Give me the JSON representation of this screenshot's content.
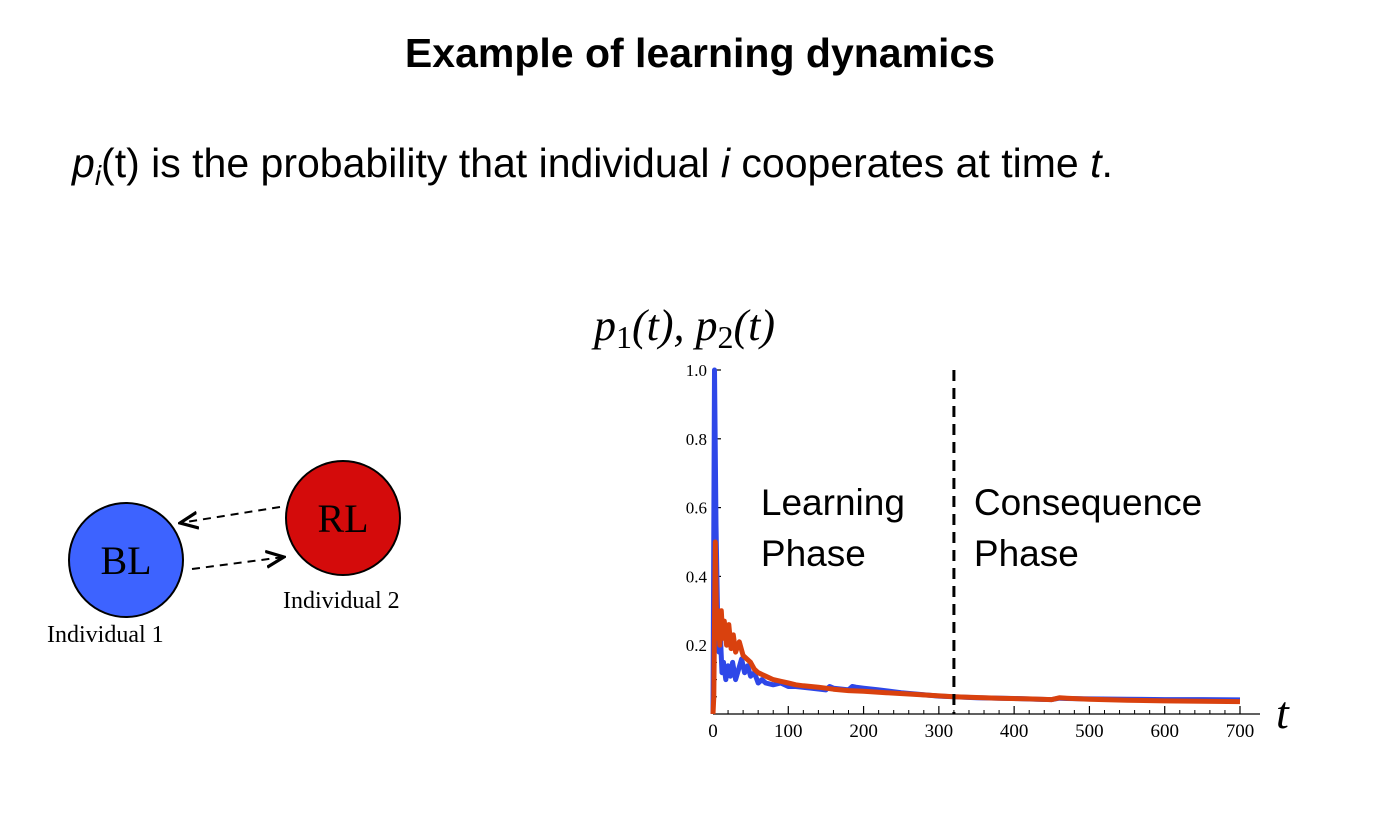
{
  "slide": {
    "title": "Example of learning dynamics",
    "sub_p": "p",
    "sub_i": "i",
    "sub_t": "(t)",
    "sub_text1": " is the probability that individual ",
    "sub_ivar": "i",
    "sub_text2": " cooperates at time ",
    "sub_tvar": "t",
    "sub_end": "."
  },
  "diagram": {
    "node1_label": "BL",
    "node2_label": "RL",
    "individual1": "Individual 1",
    "individual2": "Individual 2",
    "node1_color": "#3d63ff",
    "node2_color": "#d40b0b"
  },
  "chart_ylabel": {
    "p1": "p",
    "one": "1",
    "t1": "(t), ",
    "p2": "p",
    "two": "2",
    "t2": "(t)"
  },
  "chart_data": {
    "type": "line",
    "xlabel": "t",
    "xlim": [
      0,
      700
    ],
    "ylim": [
      0,
      1.0
    ],
    "x_ticks": [
      0,
      100,
      200,
      300,
      400,
      500,
      600,
      700
    ],
    "y_ticks": [
      0.2,
      0.4,
      0.6,
      0.8,
      1.0
    ],
    "y_tick_labels": [
      "0.2",
      "0.4",
      "0.6",
      "0.8",
      "1.0"
    ],
    "phase_boundary_x": 320,
    "annotations": [
      {
        "line1": "Learning",
        "line2": "Phase"
      },
      {
        "line1": "Consequence",
        "line2": "Phase"
      }
    ],
    "series": [
      {
        "color": "#2e47e8",
        "x": [
          0,
          2,
          4,
          6,
          8,
          10,
          12,
          14,
          17,
          20,
          23,
          26,
          30,
          34,
          38,
          42,
          46,
          50,
          55,
          60,
          65,
          70,
          80,
          90,
          100,
          110,
          130,
          150,
          155,
          160,
          180,
          185,
          190,
          200,
          220,
          250,
          280,
          300,
          320,
          350,
          400,
          430,
          450,
          460,
          470,
          500,
          550,
          600,
          650,
          700
        ],
        "y": [
          0.0,
          1.0,
          0.55,
          0.3,
          0.18,
          0.22,
          0.12,
          0.15,
          0.1,
          0.14,
          0.11,
          0.15,
          0.1,
          0.13,
          0.16,
          0.12,
          0.14,
          0.11,
          0.12,
          0.09,
          0.1,
          0.09,
          0.085,
          0.09,
          0.08,
          0.08,
          0.075,
          0.07,
          0.08,
          0.075,
          0.07,
          0.08,
          0.078,
          0.075,
          0.07,
          0.062,
          0.056,
          0.052,
          0.05,
          0.047,
          0.045,
          0.043,
          0.042,
          0.046,
          0.045,
          0.044,
          0.043,
          0.042,
          0.042,
          0.041
        ]
      },
      {
        "color": "#d9410e",
        "x": [
          0,
          1,
          3,
          5,
          7,
          9,
          11,
          13,
          15,
          18,
          21,
          24,
          27,
          30,
          35,
          40,
          45,
          50,
          55,
          60,
          70,
          80,
          90,
          100,
          110,
          120,
          140,
          160,
          180,
          200,
          230,
          260,
          290,
          320,
          350,
          380,
          420,
          450,
          460,
          470,
          500,
          550,
          600,
          650,
          700
        ],
        "y": [
          0.0,
          0.05,
          0.5,
          0.22,
          0.3,
          0.2,
          0.3,
          0.22,
          0.27,
          0.2,
          0.26,
          0.19,
          0.23,
          0.18,
          0.21,
          0.17,
          0.16,
          0.15,
          0.13,
          0.12,
          0.11,
          0.1,
          0.095,
          0.09,
          0.085,
          0.082,
          0.078,
          0.072,
          0.068,
          0.066,
          0.062,
          0.058,
          0.054,
          0.05,
          0.048,
          0.046,
          0.044,
          0.042,
          0.047,
          0.046,
          0.043,
          0.04,
          0.038,
          0.037,
          0.036
        ]
      }
    ]
  }
}
